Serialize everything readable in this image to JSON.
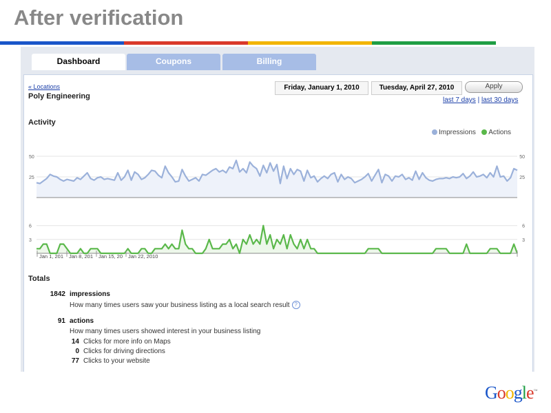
{
  "slide_title": "After verification",
  "brand_colors": [
    "#1a56c9",
    "#d93a2b",
    "#f2b500",
    "#1f9e44"
  ],
  "tabs": [
    {
      "label": "Dashboard",
      "active": true
    },
    {
      "label": "Coupons",
      "active": false
    },
    {
      "label": "Billing",
      "active": false
    }
  ],
  "header": {
    "back_link": "« Locations",
    "business_name": "Poly Engineering",
    "start_date": "Friday, January 1, 2010",
    "end_date": "Tuesday, April 27, 2010",
    "apply_label": "Apply",
    "range_last7": "last 7 days",
    "range_sep": "|",
    "range_last30": "last 30 days"
  },
  "activity": {
    "heading": "Activity",
    "legend": {
      "impressions": "Impressions",
      "actions": "Actions"
    }
  },
  "chart_data": {
    "type": "line",
    "colors": {
      "impressions": "#9bb1da",
      "actions": "#5ab84a"
    },
    "impressions": {
      "name": "Impressions",
      "ylim": [
        0,
        60
      ],
      "ticks": [
        "50",
        "25"
      ],
      "values": [
        18,
        17,
        20,
        23,
        28,
        26,
        25,
        22,
        20,
        22,
        21,
        20,
        24,
        22,
        26,
        30,
        23,
        21,
        24,
        25,
        22,
        23,
        22,
        21,
        30,
        21,
        25,
        33,
        21,
        31,
        28,
        22,
        24,
        28,
        33,
        32,
        27,
        24,
        38,
        30,
        25,
        19,
        20,
        34,
        26,
        20,
        22,
        24,
        20,
        28,
        27,
        30,
        33,
        35,
        31,
        33,
        30,
        37,
        35,
        45,
        31,
        35,
        30,
        43,
        38,
        35,
        26,
        39,
        30,
        42,
        32,
        40,
        17,
        38,
        23,
        35,
        28,
        34,
        32,
        20,
        33,
        24,
        26,
        19,
        23,
        26,
        23,
        28,
        30,
        19,
        28,
        22,
        25,
        23,
        18,
        20,
        22,
        25,
        29,
        20,
        27,
        34,
        18,
        28,
        26,
        20,
        26,
        25,
        28,
        22,
        24,
        21,
        32,
        22,
        30,
        24,
        21,
        20,
        22,
        23,
        23,
        24,
        23,
        25,
        24,
        25,
        29,
        23,
        26,
        31,
        25,
        26,
        28,
        24,
        30,
        25,
        38,
        25,
        26,
        20,
        24,
        35,
        33
      ]
    },
    "actions": {
      "name": "Actions",
      "ylim": [
        0,
        7
      ],
      "ticks": [
        "6",
        "3"
      ],
      "values": [
        1,
        1,
        2,
        2,
        0,
        0,
        0,
        2,
        2,
        1,
        0,
        0,
        0,
        1,
        0,
        0,
        1,
        1,
        1,
        0,
        0,
        0,
        0,
        0,
        0,
        0,
        0,
        1,
        0,
        0,
        0,
        1,
        1,
        0,
        0,
        1,
        1,
        1,
        2,
        1,
        2,
        1,
        1,
        5,
        2,
        1,
        1,
        0,
        0,
        0,
        1,
        3,
        1,
        1,
        1,
        2,
        2,
        3,
        1,
        2,
        0,
        3,
        2,
        4,
        2,
        3,
        2,
        6,
        2,
        4,
        1,
        3,
        2,
        4,
        1,
        4,
        2,
        1,
        3,
        1,
        3,
        1,
        1,
        0,
        0,
        0,
        0,
        0,
        0,
        0,
        0,
        0,
        0,
        0,
        0,
        0,
        0,
        0,
        1,
        1,
        1,
        1,
        0,
        0,
        0,
        0,
        0,
        0,
        0,
        0,
        0,
        0,
        0,
        0,
        0,
        0,
        0,
        0,
        1,
        1,
        1,
        1,
        0,
        0,
        0,
        0,
        0,
        2,
        0,
        0,
        0,
        0,
        0,
        0,
        1,
        1,
        1,
        0,
        0,
        0,
        0,
        2,
        0
      ]
    },
    "x_tick_labels": [
      "Jan 1, 201",
      "Jan 8, 201",
      "Jan 15, 20",
      "Jan 22, 2010"
    ]
  },
  "totals": {
    "heading": "Totals",
    "impressions_count": "1842",
    "impressions_label": "impressions",
    "impressions_desc": "How many times users saw your business listing as a local search result",
    "actions_count": "91",
    "actions_label": "actions",
    "actions_desc": "How many times users showed interest in your business listing",
    "breakdown": [
      {
        "count": "14",
        "label": "Clicks for more info on Maps"
      },
      {
        "count": "0",
        "label": "Clicks for driving directions"
      },
      {
        "count": "77",
        "label": "Clicks to your website"
      }
    ]
  },
  "logo_text": "Google",
  "logo_letter_colors": [
    "#1a56c9",
    "#d93a2b",
    "#f2b500",
    "#1a56c9",
    "#1f9e44",
    "#d93a2b"
  ]
}
